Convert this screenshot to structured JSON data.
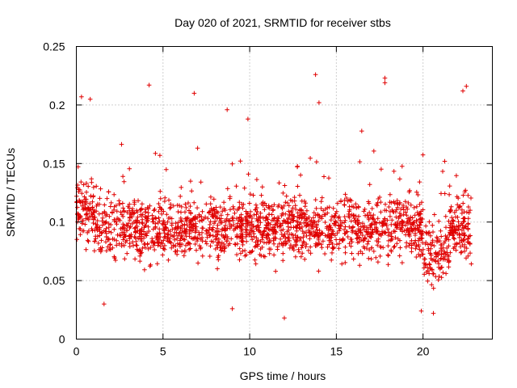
{
  "chart_data": {
    "type": "scatter",
    "title": "Day 020 of 2021, SRMTID for receiver stbs",
    "xlabel": "GPS time / hours",
    "ylabel": "SRMTID / TECUs",
    "xlim": [
      0,
      24
    ],
    "ylim": [
      0,
      0.25
    ],
    "xticks": [
      0,
      5,
      10,
      15,
      20
    ],
    "yticks": [
      0,
      0.05,
      0.1,
      0.15,
      0.2,
      0.25
    ],
    "xtick_labels": [
      "0",
      "5",
      "10",
      "15",
      "20"
    ],
    "ytick_labels": [
      "0",
      "0.05",
      "0.1",
      "0.15",
      "0.2",
      "0.25"
    ],
    "grid": true,
    "marker": "+",
    "series_color": "#e00000",
    "series": [
      {
        "name": "SRMTID",
        "approx_point_count": 2000,
        "x_range": [
          0,
          22.8
        ],
        "typical_y_range": [
          0.05,
          0.15
        ],
        "center_y": 0.095,
        "outliers": [
          {
            "x": 0.3,
            "y": 0.207
          },
          {
            "x": 0.8,
            "y": 0.205
          },
          {
            "x": 4.2,
            "y": 0.217
          },
          {
            "x": 6.8,
            "y": 0.21
          },
          {
            "x": 8.7,
            "y": 0.196
          },
          {
            "x": 9.9,
            "y": 0.188
          },
          {
            "x": 13.8,
            "y": 0.226
          },
          {
            "x": 14.0,
            "y": 0.202
          },
          {
            "x": 17.8,
            "y": 0.223
          },
          {
            "x": 17.8,
            "y": 0.219
          },
          {
            "x": 22.5,
            "y": 0.216
          },
          {
            "x": 22.3,
            "y": 0.212
          },
          {
            "x": 12.0,
            "y": 0.018
          },
          {
            "x": 19.9,
            "y": 0.024
          },
          {
            "x": 20.6,
            "y": 0.022
          },
          {
            "x": 9.0,
            "y": 0.026
          },
          {
            "x": 1.6,
            "y": 0.03
          }
        ]
      }
    ]
  }
}
